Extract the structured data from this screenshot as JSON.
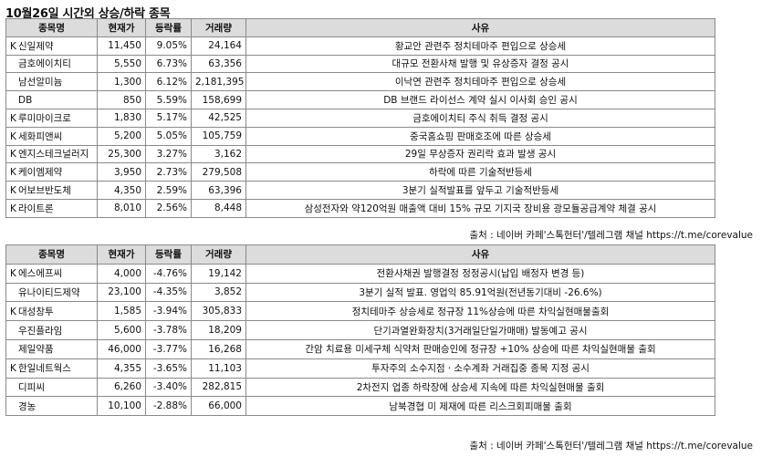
{
  "title": "10월26일  시간외 상승/하락 종목",
  "headers": {
    "name": "종목명",
    "price": "현재가",
    "rate": "등락률",
    "volume": "거래량",
    "reason": "사유"
  },
  "rise": [
    {
      "prefix": "K",
      "name": "신일제약",
      "price": "11,450",
      "rate": "9.05%",
      "volume": "24,164",
      "reason": "황교안 관련주 정치테마주 편입으로 상승세"
    },
    {
      "prefix": "",
      "name": "금호에이치티",
      "price": "5,550",
      "rate": "6.73%",
      "volume": "63,356",
      "reason": "대규모 전환사채 발행 및 유상증자 결정 공시"
    },
    {
      "prefix": "",
      "name": "남선알미늄",
      "price": "1,300",
      "rate": "6.12%",
      "volume": "2,181,395",
      "reason": "이낙연 관련주 정치테마주 편입으로 상승세"
    },
    {
      "prefix": "",
      "name": "DB",
      "price": "850",
      "rate": "5.59%",
      "volume": "158,699",
      "reason": "DB 브랜드 라이선스 계약 실시 이사회 승인 공시"
    },
    {
      "prefix": "K",
      "name": "루미마이크로",
      "price": "1,830",
      "rate": "5.17%",
      "volume": "42,525",
      "reason": "금호에이치티 주식 취득 결정 공시"
    },
    {
      "prefix": "K",
      "name": "세화피앤씨",
      "price": "5,200",
      "rate": "5.05%",
      "volume": "105,759",
      "reason": "중국홈쇼핑 판매호조에 따른 상승세"
    },
    {
      "prefix": "K",
      "name": "엔지스테크널러지",
      "price": "25,300",
      "rate": "3.27%",
      "volume": "3,162",
      "reason": "29일 무상증자 권리락 효과 발생 공시"
    },
    {
      "prefix": "K",
      "name": "케이엠제약",
      "price": "3,950",
      "rate": "2.73%",
      "volume": "279,508",
      "reason": "하락에 따른 기술적반등세"
    },
    {
      "prefix": "K",
      "name": "어보브반도체",
      "price": "4,350",
      "rate": "2.59%",
      "volume": "63,396",
      "reason": "3분기 실적발표를 앞두고 기술적반등세"
    },
    {
      "prefix": "K",
      "name": "라이트론",
      "price": "8,010",
      "rate": "2.56%",
      "volume": "8,448",
      "reason": "삼성전자와 약120억원 매출액 대비 15% 규모 기지국 장비용 광모듈공급계약 체결 공시"
    }
  ],
  "fall": [
    {
      "prefix": "K",
      "name": "에스에프씨",
      "price": "4,000",
      "rate": "-4.76%",
      "volume": "19,142",
      "reason": "전환사채권 발행결정 정정공시(납입 배정자 변경 등)"
    },
    {
      "prefix": "",
      "name": "유나이티드제약",
      "price": "23,100",
      "rate": "-4.35%",
      "volume": "3,852",
      "reason": "3분기 실적 발표. 영업익 85.91억원(전년동기대비 -26.6%)"
    },
    {
      "prefix": "K",
      "name": "대성창투",
      "price": "1,585",
      "rate": "-3.94%",
      "volume": "305,833",
      "reason": "정치테마주 상승세로 정규장 11%상승에 따른 차익실현매물출회"
    },
    {
      "prefix": "",
      "name": "우진플라임",
      "price": "5,600",
      "rate": "-3.78%",
      "volume": "18,209",
      "reason": "단기과열완화장치(3거래일단일가매매) 발동예고 공시"
    },
    {
      "prefix": "",
      "name": "제일약품",
      "price": "46,000",
      "rate": "-3.77%",
      "volume": "16,268",
      "reason": "간암 치료용 미세구체 식약처 판매승인에 정규장 +10% 상승에 따른 차익실현매물 출회"
    },
    {
      "prefix": "K",
      "name": "한일네트웍스",
      "price": "4,355",
      "rate": "-3.65%",
      "volume": "11,103",
      "reason": "투자주의 소수지점ㆍ소수계좌 거래집중 종목 지정 공시"
    },
    {
      "prefix": "",
      "name": "디피씨",
      "price": "6,260",
      "rate": "-3.40%",
      "volume": "282,815",
      "reason": "2차전지 업종 하락장에 상승세 지속에 따른 차익실현매물 출회"
    },
    {
      "prefix": "",
      "name": "경농",
      "price": "10,100",
      "rate": "-2.88%",
      "volume": "66,000",
      "reason": "남북경협 미 제재에 따른 리스크회피매물 출회"
    }
  ],
  "source": "출처 : 네이버 카페'스톡헌터'/텔레그램 채널 https://t.me/corevalue"
}
